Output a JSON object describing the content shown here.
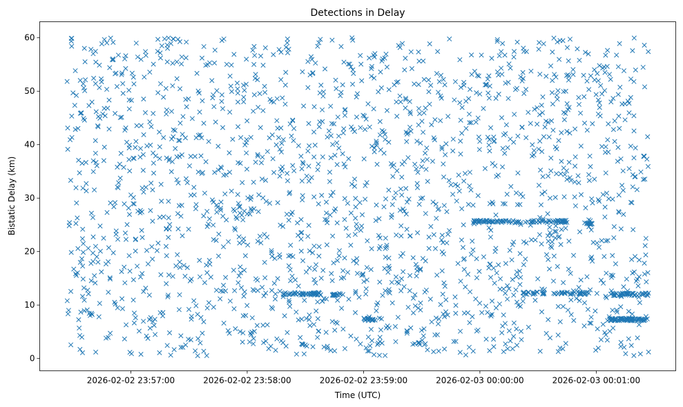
{
  "chart_data": {
    "type": "scatter",
    "title": "Detections in Delay",
    "xlabel": "Time (UTC)",
    "ylabel": "Bistatic Delay (km)",
    "x_unit": "seconds relative to 2026-02-02 23:57:00",
    "xlim": [
      -47,
      281
    ],
    "ylim": [
      -2.3,
      63
    ],
    "xticks": [
      {
        "value": 0,
        "label": "2026-02-02 23:57:00"
      },
      {
        "value": 60,
        "label": "2026-02-02 23:58:00"
      },
      {
        "value": 120,
        "label": "2026-02-02 23:59:00"
      },
      {
        "value": 180,
        "label": "2026-02-03 00:00:00"
      },
      {
        "value": 240,
        "label": "2026-02-03 00:01:00"
      }
    ],
    "yticks": [
      0,
      10,
      20,
      30,
      40,
      50,
      60
    ],
    "grid": false,
    "marker": "x",
    "color": "#1f77b4",
    "series": {
      "noise": {
        "count": 1900,
        "x_range": [
          -33,
          267
        ],
        "y_range": [
          0.5,
          60
        ],
        "seed": 7
      },
      "tracks": [
        {
          "x_range": [
            78,
            98
          ],
          "y": 12.1,
          "count": 45
        },
        {
          "x_range": [
            104,
            110
          ],
          "y": 12.0,
          "count": 14
        },
        {
          "x_range": [
            120,
            126
          ],
          "y": 7.3,
          "count": 18
        },
        {
          "x_range": [
            86,
            91
          ],
          "y": 2.5,
          "count": 6
        },
        {
          "x_range": [
            145,
            149
          ],
          "y": 2.8,
          "count": 6
        },
        {
          "x_range": [
            176,
            200
          ],
          "y": 25.6,
          "count": 45
        },
        {
          "x_range": [
            203,
            226
          ],
          "y": 25.6,
          "count": 40
        },
        {
          "x_range": [
            234,
            238
          ],
          "y": 25.2,
          "count": 8
        },
        {
          "x_range": [
            202,
            237
          ],
          "y": 12.2,
          "count": 55
        },
        {
          "x_range": [
            246,
            267
          ],
          "y": 7.3,
          "count": 70
        },
        {
          "x_range": [
            246,
            267
          ],
          "y": 12.0,
          "count": 45
        }
      ]
    }
  }
}
